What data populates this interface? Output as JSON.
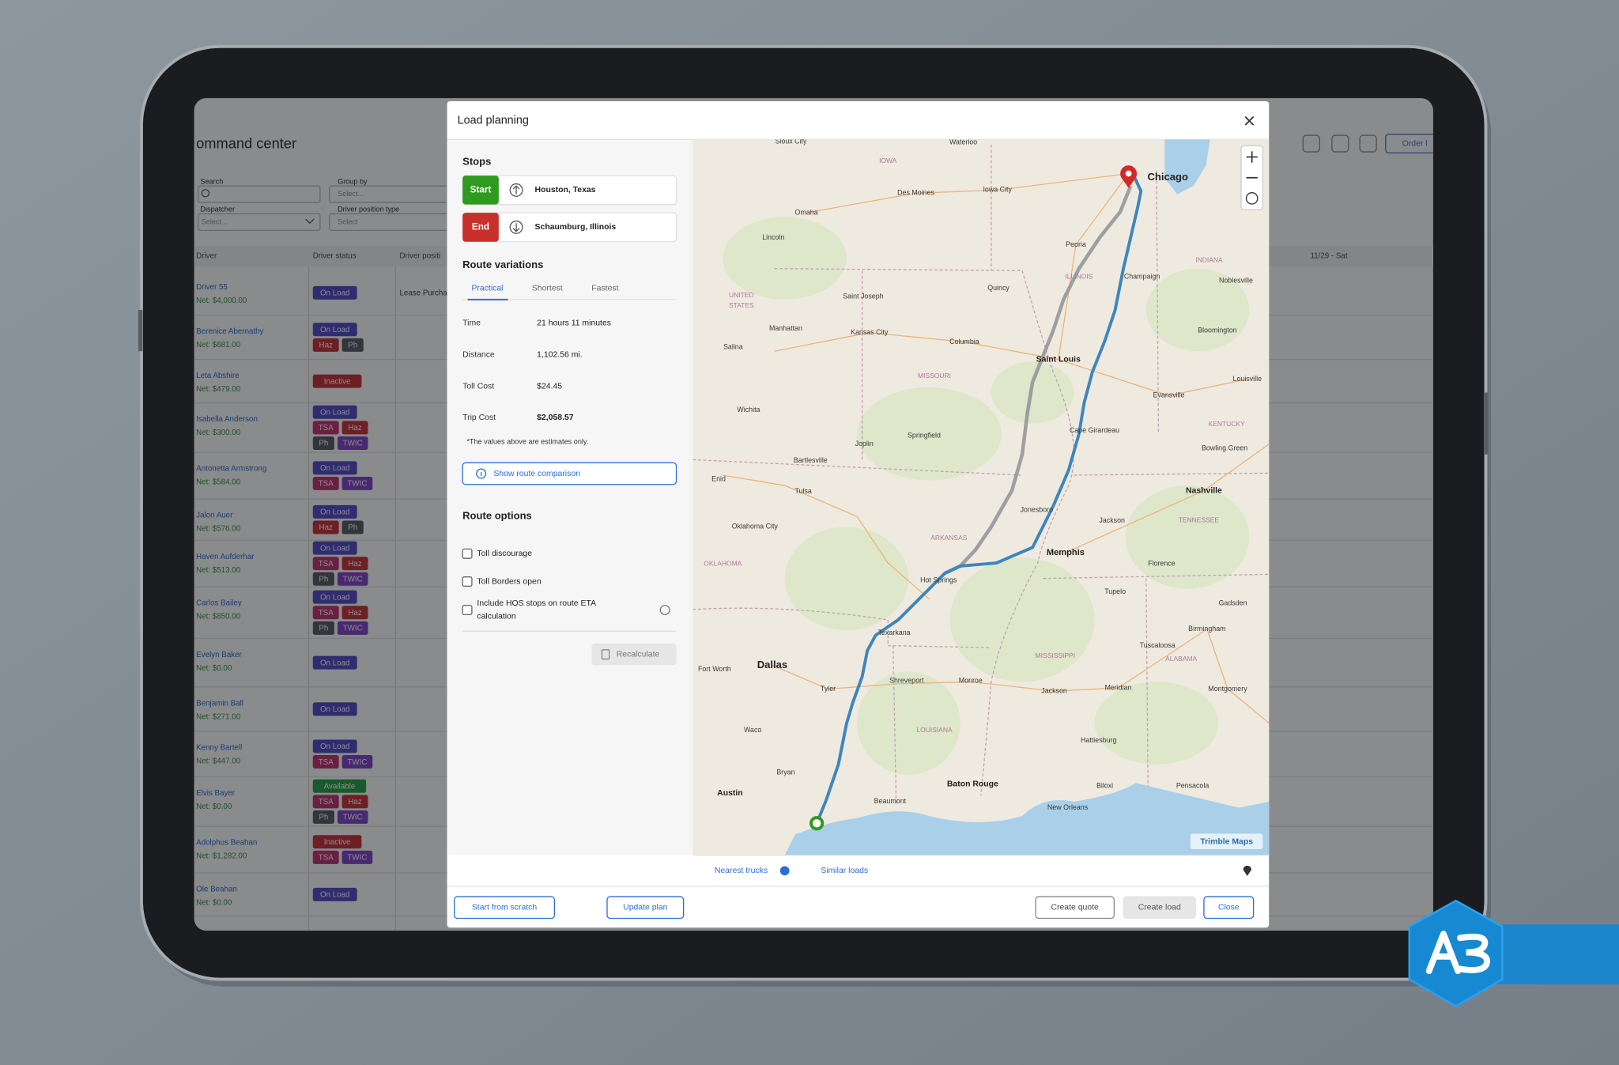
{
  "app": {
    "title": "ommand center",
    "order_button": "Order l",
    "filters": {
      "search_label": "Search",
      "group_by_label": "Group by",
      "group_by_value": "Select...",
      "dispatcher_label": "Dispatcher",
      "dispatcher_value": "Select...",
      "position_label": "Driver position type",
      "position_value": "Select"
    },
    "columns": [
      "Driver",
      "Driver status",
      "Driver positi",
      "11/29 - Sat"
    ],
    "first_row_position": "Lease Purcha",
    "rows": [
      {
        "name": "Driver 55",
        "net": "Net: $4,000.00",
        "badges": [
          [
            {
              "text": "On Load",
              "color": "#4a40c4"
            }
          ]
        ]
      },
      {
        "name": "Berenice Abernathy",
        "net": "Net: $681.00",
        "badges": [
          [
            {
              "text": "On Load",
              "color": "#4a40c4"
            }
          ],
          [
            {
              "text": "Haz",
              "color": "#c4262e"
            },
            {
              "text": "Ph",
              "color": "#4f5257"
            }
          ]
        ]
      },
      {
        "name": "Leta Abshire",
        "net": "Net: $479.00",
        "badges": [
          [
            {
              "text": "Inactive",
              "color": "#c4262e"
            }
          ]
        ]
      },
      {
        "name": "Isabella Anderson",
        "net": "Net: $300.00",
        "badges": [
          [
            {
              "text": "On Load",
              "color": "#4a40c4"
            }
          ],
          [
            {
              "text": "TSA",
              "color": "#c0266a"
            },
            {
              "text": "Haz",
              "color": "#c4262e"
            }
          ],
          [
            {
              "text": "Ph",
              "color": "#4f5257"
            },
            {
              "text": "TWIC",
              "color": "#7b3bc4"
            }
          ]
        ]
      },
      {
        "name": "Antonetta Armstrong",
        "net": "Net: $584.00",
        "badges": [
          [
            {
              "text": "On Load",
              "color": "#4a40c4"
            }
          ],
          [
            {
              "text": "TSA",
              "color": "#c0266a"
            },
            {
              "text": "TWIC",
              "color": "#7b3bc4"
            }
          ]
        ]
      },
      {
        "name": "Jalon Auer",
        "net": "Net: $576.00",
        "badges": [
          [
            {
              "text": "On Load",
              "color": "#4a40c4"
            }
          ],
          [
            {
              "text": "Haz",
              "color": "#c4262e"
            },
            {
              "text": "Ph",
              "color": "#4f5257"
            }
          ]
        ]
      },
      {
        "name": "Haven Aufderhar",
        "net": "Net: $513.00",
        "badges": [
          [
            {
              "text": "On Load",
              "color": "#4a40c4"
            }
          ],
          [
            {
              "text": "TSA",
              "color": "#c0266a"
            },
            {
              "text": "Haz",
              "color": "#c4262e"
            }
          ],
          [
            {
              "text": "Ph",
              "color": "#4f5257"
            },
            {
              "text": "TWIC",
              "color": "#7b3bc4"
            }
          ]
        ]
      },
      {
        "name": "Carlos Bailey",
        "net": "Net: $850.00",
        "badges": [
          [
            {
              "text": "On Load",
              "color": "#4a40c4"
            }
          ],
          [
            {
              "text": "TSA",
              "color": "#c0266a"
            },
            {
              "text": "Haz",
              "color": "#c4262e"
            }
          ],
          [
            {
              "text": "Ph",
              "color": "#4f5257"
            },
            {
              "text": "TWIC",
              "color": "#7b3bc4"
            }
          ]
        ]
      },
      {
        "name": "Evelyn Baker",
        "net": "Net: $0.00",
        "badges": [
          [
            {
              "text": "On Load",
              "color": "#4a40c4"
            }
          ]
        ]
      },
      {
        "name": "Benjamin Ball",
        "net": "Net: $271.00",
        "badges": [
          [
            {
              "text": "On Load",
              "color": "#4a40c4"
            }
          ]
        ]
      },
      {
        "name": "Kenny Bartell",
        "net": "Net: $447.00",
        "badges": [
          [
            {
              "text": "On Load",
              "color": "#4a40c4"
            }
          ],
          [
            {
              "text": "TSA",
              "color": "#c0266a"
            },
            {
              "text": "TWIC",
              "color": "#7b3bc4"
            }
          ]
        ]
      },
      {
        "name": "Elvis Bayer",
        "net": "Net: $0.00",
        "badges": [
          [
            {
              "text": "Available",
              "color": "#1f9a3c"
            }
          ],
          [
            {
              "text": "TSA",
              "color": "#c0266a"
            },
            {
              "text": "Haz",
              "color": "#c4262e"
            }
          ],
          [
            {
              "text": "Ph",
              "color": "#4f5257"
            },
            {
              "text": "TWIC",
              "color": "#7b3bc4"
            }
          ]
        ]
      },
      {
        "name": "Adolphus Beahan",
        "net": "Net: $1,282.00",
        "badges": [
          [
            {
              "text": "Inactive",
              "color": "#c4262e"
            }
          ],
          [
            {
              "text": "TSA",
              "color": "#c0266a"
            },
            {
              "text": "TWIC",
              "color": "#7b3bc4"
            }
          ]
        ]
      },
      {
        "name": "Ole Beahan",
        "net": "Net: $0.00",
        "badges": [
          [
            {
              "text": "On Load",
              "color": "#4a40c4"
            }
          ]
        ]
      }
    ]
  },
  "modal": {
    "title": "Load planning",
    "stops_heading": "Stops",
    "stops": [
      {
        "tag": "Start",
        "place": "Houston, Texas",
        "color": "#2e9a1e"
      },
      {
        "tag": "End",
        "place": "Schaumburg, Illinois",
        "color": "#c8302c"
      }
    ],
    "variations_heading": "Route variations",
    "variations": [
      "Practical",
      "Shortest",
      "Fastest"
    ],
    "details": [
      [
        "Time",
        "21 hours 11 minutes"
      ],
      [
        "Distance",
        "1,102.56 mi."
      ],
      [
        "Toll Cost",
        "$24.45"
      ],
      [
        "Trip Cost",
        "$2,058.57"
      ]
    ],
    "note": "*The values above are estimates only.",
    "compare_button": "Show route comparison",
    "options_heading": "Route options",
    "options": [
      [
        "Toll discourage"
      ],
      [
        "Toll Borders open"
      ],
      [
        "Include HOS stops on route ETA",
        "calculation"
      ]
    ],
    "recalculate": "Recalculate",
    "tabs": [
      "Nearest trucks",
      "Similar loads"
    ],
    "footer_left": [
      "Start from scratch",
      "Update plan"
    ],
    "footer_right": [
      "Create quote",
      "Create load",
      "Close"
    ]
  },
  "map": {
    "cities": [
      "Chicago",
      "Des Moines",
      "Omaha",
      "Lincoln",
      "Iowa City",
      "Waterloo",
      "Sioux City",
      "Peoria",
      "Champaign",
      "Noblesville",
      "Saint Joseph",
      "Quincy",
      "Kansas City",
      "Manhattan",
      "Columbia",
      "Saint Louis",
      "Bloomington",
      "Louisville",
      "Salina",
      "Evansville",
      "Wichita",
      "Springfield",
      "Cape Girardeau",
      "Joplin",
      "Bowling Green",
      "Bartlesville",
      "Nashville",
      "Enid",
      "Tulsa",
      "Jonesboro",
      "Jackson",
      "Oklahoma City",
      "Memphis",
      "Hot Springs",
      "Florence",
      "Tupelo",
      "Gadsden",
      "Texarkana",
      "Birmingham",
      "Dallas",
      "Fort Worth",
      "Shreveport",
      "Monroe",
      "Tuscaloosa",
      "Tyler",
      "Jackson",
      "Meridian",
      "Montgomery",
      "Waco",
      "Hattiesburg",
      "Bryan",
      "Baton Rouge",
      "Austin",
      "Biloxi",
      "Pensacola",
      "Beaumont",
      "New Orleans"
    ],
    "regions": [
      "IOWA",
      "ILLINOIS",
      "INDIANA",
      "UNITED",
      "STATES",
      "MISSOURI",
      "KENTUCKY",
      "TENNESSEE",
      "ARKANSAS",
      "OKLAHOMA",
      "MISSISSIPPI",
      "ALABAMA",
      "LOUISIANA"
    ],
    "attribution": "Trimble Maps"
  }
}
